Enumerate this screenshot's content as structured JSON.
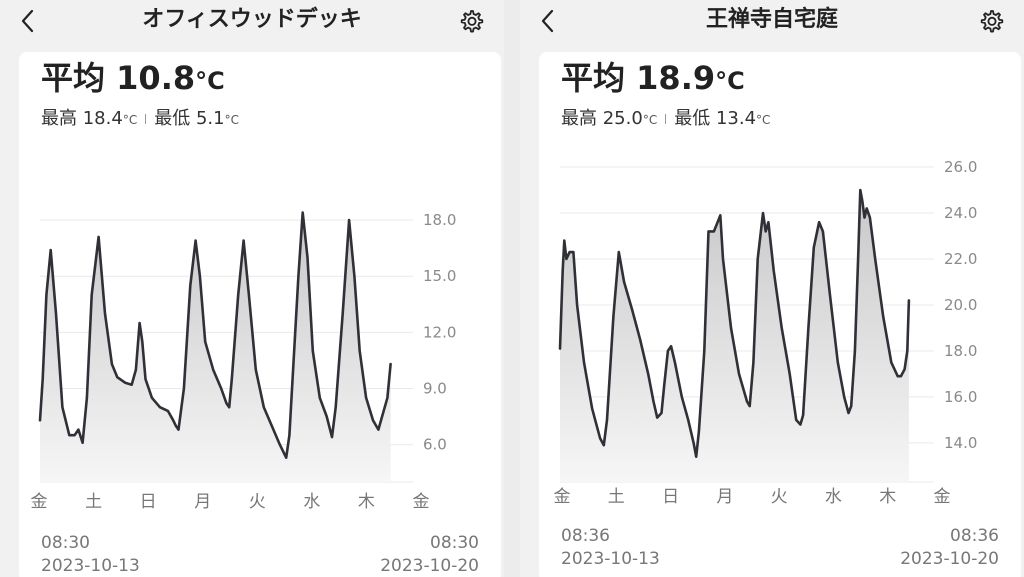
{
  "icons": {
    "back": "chevron-left-icon",
    "settings": "gear-icon"
  },
  "colors": {
    "line": "#2f3137",
    "fill_top": "#c8c8c8",
    "fill_bottom": "#f6f6f6",
    "grid": "#e9e9e9",
    "tick": "#8a8a8a"
  },
  "panels": [
    {
      "title": "オフィスウッドデッキ",
      "back_label": "<",
      "avg_label": "平均",
      "avg_value": "10.8",
      "unit": "°C",
      "max_label": "最高",
      "max_value": "18.4",
      "min_label": "最低",
      "min_value": "5.1",
      "unit_small": "°C",
      "start_time": "08:30",
      "start_date": "2023-10-13",
      "end_time": "08:30",
      "end_date": "2023-10-20",
      "chart_data": {
        "type": "area",
        "y_ticks": [
          "6.0",
          "9.0",
          "12.0",
          "15.0",
          "18.0"
        ],
        "ylim": [
          4.0,
          19.5
        ],
        "x_ticks": [
          "金",
          "土",
          "日",
          "月",
          "火",
          "水",
          "木",
          "金"
        ],
        "grid": true,
        "points": [
          [
            0.0,
            7.3
          ],
          [
            0.05,
            9.5
          ],
          [
            0.12,
            14.0
          ],
          [
            0.2,
            16.4
          ],
          [
            0.3,
            13.0
          ],
          [
            0.42,
            8.0
          ],
          [
            0.55,
            6.5
          ],
          [
            0.65,
            6.5
          ],
          [
            0.72,
            6.8
          ],
          [
            0.8,
            6.1
          ],
          [
            0.88,
            8.5
          ],
          [
            0.97,
            14.0
          ],
          [
            1.1,
            17.1
          ],
          [
            1.22,
            13.0
          ],
          [
            1.35,
            10.3
          ],
          [
            1.45,
            9.6
          ],
          [
            1.6,
            9.3
          ],
          [
            1.72,
            9.2
          ],
          [
            1.8,
            10.0
          ],
          [
            1.87,
            12.5
          ],
          [
            1.92,
            11.5
          ],
          [
            1.98,
            9.5
          ],
          [
            2.1,
            8.5
          ],
          [
            2.25,
            8.0
          ],
          [
            2.4,
            7.8
          ],
          [
            2.5,
            7.3
          ],
          [
            2.55,
            7.0
          ],
          [
            2.6,
            6.8
          ],
          [
            2.7,
            9.0
          ],
          [
            2.82,
            14.5
          ],
          [
            2.92,
            16.9
          ],
          [
            3.0,
            15.0
          ],
          [
            3.1,
            11.5
          ],
          [
            3.25,
            10.0
          ],
          [
            3.4,
            9.0
          ],
          [
            3.5,
            8.2
          ],
          [
            3.55,
            8.0
          ],
          [
            3.6,
            9.5
          ],
          [
            3.72,
            14.0
          ],
          [
            3.82,
            16.9
          ],
          [
            3.92,
            14.0
          ],
          [
            4.05,
            10.0
          ],
          [
            4.2,
            8.0
          ],
          [
            4.35,
            7.0
          ],
          [
            4.5,
            6.0
          ],
          [
            4.62,
            5.3
          ],
          [
            4.68,
            6.5
          ],
          [
            4.75,
            10.0
          ],
          [
            4.85,
            15.0
          ],
          [
            4.93,
            18.4
          ],
          [
            5.02,
            16.0
          ],
          [
            5.12,
            11.0
          ],
          [
            5.25,
            8.5
          ],
          [
            5.38,
            7.5
          ],
          [
            5.48,
            6.4
          ],
          [
            5.55,
            8.0
          ],
          [
            5.68,
            13.0
          ],
          [
            5.8,
            18.0
          ],
          [
            5.9,
            15.0
          ],
          [
            6.0,
            11.0
          ],
          [
            6.12,
            8.5
          ],
          [
            6.25,
            7.3
          ],
          [
            6.35,
            6.8
          ],
          [
            6.42,
            7.5
          ],
          [
            6.52,
            8.5
          ],
          [
            6.58,
            10.3
          ]
        ]
      }
    },
    {
      "title": "王禅寺自宅庭",
      "back_label": "<",
      "avg_label": "平均",
      "avg_value": "18.9",
      "unit": "°C",
      "max_label": "最高",
      "max_value": "25.0",
      "min_label": "最低",
      "min_value": "13.4",
      "unit_small": "°C",
      "start_time": "08:36",
      "start_date": "2023-10-13",
      "end_time": "08:36",
      "end_date": "2023-10-20",
      "chart_data": {
        "type": "area",
        "y_ticks": [
          "14.0",
          "16.0",
          "18.0",
          "20.0",
          "22.0",
          "24.0",
          "26.0"
        ],
        "ylim": [
          12.3,
          26.0
        ],
        "x_ticks": [
          "金",
          "土",
          "日",
          "月",
          "火",
          "水",
          "木",
          "金"
        ],
        "grid": true,
        "points": [
          [
            0.0,
            18.1
          ],
          [
            0.05,
            21.5
          ],
          [
            0.08,
            22.8
          ],
          [
            0.12,
            22.0
          ],
          [
            0.18,
            22.3
          ],
          [
            0.25,
            22.3
          ],
          [
            0.32,
            20.0
          ],
          [
            0.45,
            17.5
          ],
          [
            0.6,
            15.5
          ],
          [
            0.75,
            14.2
          ],
          [
            0.82,
            13.9
          ],
          [
            0.88,
            15.0
          ],
          [
            1.0,
            19.5
          ],
          [
            1.1,
            22.3
          ],
          [
            1.2,
            21.0
          ],
          [
            1.35,
            19.8
          ],
          [
            1.5,
            18.5
          ],
          [
            1.65,
            17.0
          ],
          [
            1.75,
            15.8
          ],
          [
            1.82,
            15.1
          ],
          [
            1.9,
            15.3
          ],
          [
            1.95,
            16.5
          ],
          [
            2.02,
            18.0
          ],
          [
            2.08,
            18.2
          ],
          [
            2.15,
            17.5
          ],
          [
            2.28,
            16.0
          ],
          [
            2.4,
            15.0
          ],
          [
            2.5,
            14.0
          ],
          [
            2.55,
            13.4
          ],
          [
            2.6,
            14.5
          ],
          [
            2.7,
            18.0
          ],
          [
            2.78,
            23.2
          ],
          [
            2.88,
            23.2
          ],
          [
            2.95,
            23.6
          ],
          [
            3.0,
            23.9
          ],
          [
            3.05,
            22.0
          ],
          [
            3.2,
            19.0
          ],
          [
            3.35,
            17.0
          ],
          [
            3.5,
            15.8
          ],
          [
            3.55,
            15.6
          ],
          [
            3.62,
            17.5
          ],
          [
            3.7,
            22.0
          ],
          [
            3.8,
            24.0
          ],
          [
            3.85,
            23.2
          ],
          [
            3.9,
            23.6
          ],
          [
            4.0,
            21.5
          ],
          [
            4.15,
            19.0
          ],
          [
            4.3,
            17.0
          ],
          [
            4.42,
            15.0
          ],
          [
            4.5,
            14.8
          ],
          [
            4.55,
            15.2
          ],
          [
            4.65,
            19.0
          ],
          [
            4.75,
            22.5
          ],
          [
            4.85,
            23.6
          ],
          [
            4.92,
            23.2
          ],
          [
            5.05,
            20.5
          ],
          [
            5.2,
            17.5
          ],
          [
            5.32,
            16.0
          ],
          [
            5.4,
            15.3
          ],
          [
            5.45,
            15.6
          ],
          [
            5.52,
            18.0
          ],
          [
            5.58,
            22.0
          ],
          [
            5.62,
            25.0
          ],
          [
            5.66,
            24.5
          ],
          [
            5.7,
            23.8
          ],
          [
            5.74,
            24.2
          ],
          [
            5.8,
            23.8
          ],
          [
            5.9,
            22.0
          ],
          [
            6.05,
            19.5
          ],
          [
            6.2,
            17.5
          ],
          [
            6.32,
            16.9
          ],
          [
            6.38,
            16.9
          ],
          [
            6.45,
            17.2
          ],
          [
            6.5,
            18.0
          ],
          [
            6.53,
            20.2
          ]
        ]
      }
    }
  ]
}
